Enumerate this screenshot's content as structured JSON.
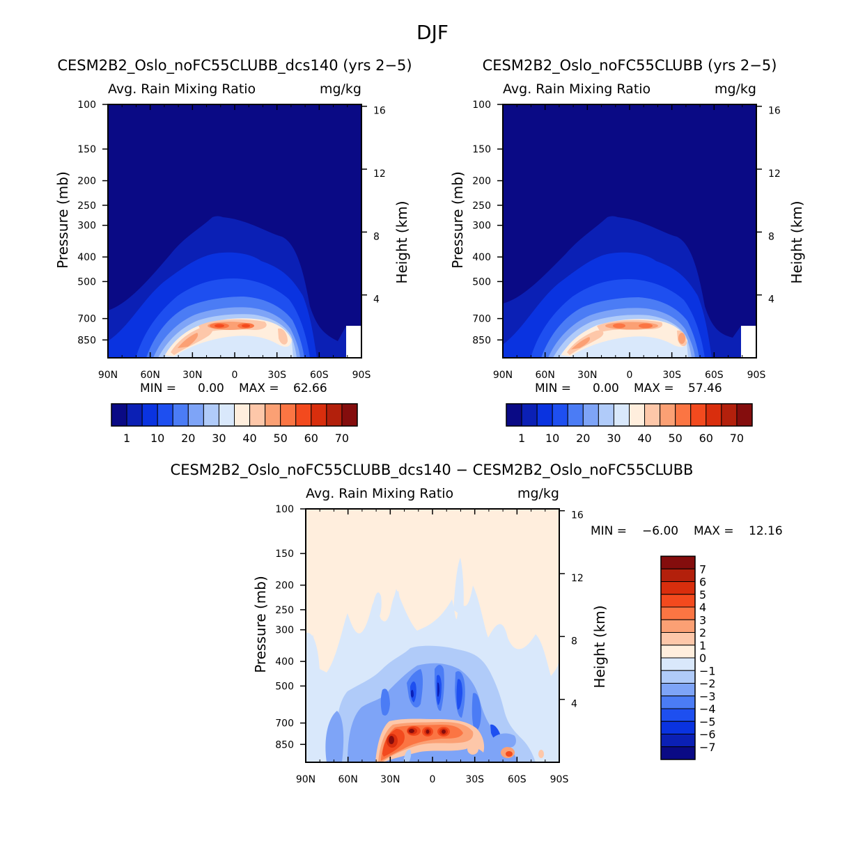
{
  "figure_title": "DJF",
  "colors": {
    "abs_scale": [
      "#0a0a85",
      "#0b20b5",
      "#0a33e0",
      "#1e4ff0",
      "#4b7cf5",
      "#7ea4f7",
      "#b0cbf9",
      "#d9e8fb",
      "#ffeedd",
      "#fdc7a9",
      "#fba074",
      "#fb7543",
      "#f34a1e",
      "#d92e0d",
      "#b3200c",
      "#840d0d"
    ],
    "diff_scale": [
      "#0a0a85",
      "#0b20b5",
      "#0a33e0",
      "#1e4ff0",
      "#4b7cf5",
      "#7ea4f7",
      "#b0cbf9",
      "#d9e8fb",
      "#ffeedd",
      "#fdc7a9",
      "#fba074",
      "#fb7543",
      "#f34a1e",
      "#d92e0d",
      "#b3200c",
      "#840d0d"
    ]
  },
  "chart_data": [
    {
      "type": "heatmap",
      "title": "CESM2B2_Oslo_noFC55CLUBB_dcs140 (yrs 2−5)",
      "subtitle_left": "Avg. Rain Mixing Ratio",
      "subtitle_right": "mg/kg",
      "ylabel": "Pressure (mb)",
      "ylabel_right": "Height (km)",
      "x_ticks": [
        "90N",
        "60N",
        "30N",
        "0",
        "30S",
        "60S",
        "90S"
      ],
      "y_ticks": [
        "100",
        "150",
        "200",
        "250",
        "300",
        "400",
        "500",
        "700",
        "850"
      ],
      "y_ticks_right": [
        "16",
        "12",
        "8",
        "4"
      ],
      "min_label": "MIN =",
      "min_value": "0.00",
      "max_label": "MAX =",
      "max_value": "62.66",
      "min": 0.0,
      "max": 62.66,
      "colorbar_labels": [
        "1",
        "10",
        "20",
        "30",
        "40",
        "50",
        "60",
        "70"
      ]
    },
    {
      "type": "heatmap",
      "title": "CESM2B2_Oslo_noFC55CLUBB (yrs 2−5)",
      "subtitle_left": "Avg. Rain Mixing Ratio",
      "subtitle_right": "mg/kg",
      "ylabel": "Pressure (mb)",
      "ylabel_right": "Height (km)",
      "x_ticks": [
        "90N",
        "60N",
        "30N",
        "0",
        "30S",
        "60S",
        "90S"
      ],
      "y_ticks": [
        "100",
        "150",
        "200",
        "250",
        "300",
        "400",
        "500",
        "700",
        "850"
      ],
      "y_ticks_right": [
        "16",
        "12",
        "8",
        "4"
      ],
      "min_label": "MIN =",
      "min_value": "0.00",
      "max_label": "MAX =",
      "max_value": "57.46",
      "min": 0.0,
      "max": 57.46,
      "colorbar_labels": [
        "1",
        "10",
        "20",
        "30",
        "40",
        "50",
        "60",
        "70"
      ]
    },
    {
      "type": "heatmap",
      "title": "CESM2B2_Oslo_noFC55CLUBB_dcs140 − CESM2B2_Oslo_noFC55CLUBB",
      "subtitle_left": "Avg. Rain Mixing Ratio",
      "subtitle_right": "mg/kg",
      "ylabel": "Pressure (mb)",
      "ylabel_right": "Height (km)",
      "x_ticks": [
        "90N",
        "60N",
        "30N",
        "0",
        "30S",
        "60S",
        "90S"
      ],
      "y_ticks": [
        "100",
        "150",
        "200",
        "250",
        "300",
        "400",
        "500",
        "700",
        "850"
      ],
      "y_ticks_right": [
        "16",
        "12",
        "8",
        "4"
      ],
      "min_label": "MIN =",
      "min_value": "−6.00",
      "max_label": "MAX =",
      "max_value": "12.16",
      "min": -6.0,
      "max": 12.16,
      "colorbar_labels": [
        "7",
        "6",
        "5",
        "4",
        "3",
        "2",
        "1",
        "0",
        "−1",
        "−2",
        "−3",
        "−4",
        "−5",
        "−6",
        "−7"
      ]
    }
  ]
}
